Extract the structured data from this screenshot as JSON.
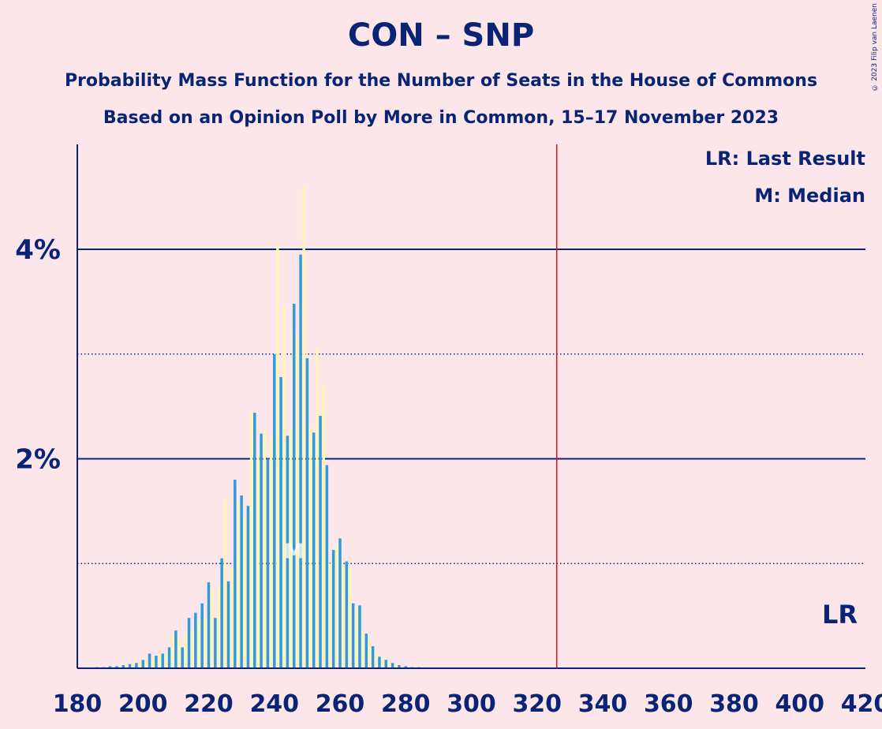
{
  "title": "CON – SNP",
  "subtitle_line1": "Probability Mass Function for the Number of Seats in the House of Commons",
  "subtitle_line2": "Based on an Opinion Poll by More in Common, 15–17 November 2023",
  "copyright": "© 2023 Filip van Laenen",
  "colors": {
    "background": "#fde6ea",
    "text": "#0a2475",
    "bar_blue": "#2f9bdb",
    "bar_yellow": "#fff4b8",
    "last_result_line": "#e0101a"
  },
  "chart_data": {
    "type": "bar",
    "title": "CON – SNP",
    "xlabel": "",
    "ylabel": "",
    "xlim": [
      180,
      420
    ],
    "ylim": [
      0,
      5
    ],
    "x_ticks": [
      180,
      200,
      220,
      240,
      260,
      280,
      300,
      320,
      340,
      360,
      380,
      400,
      420
    ],
    "y_tick_labels": [
      {
        "value": 2,
        "label": "2%"
      },
      {
        "value": 4,
        "label": "4%"
      }
    ],
    "grid_solid": [
      2,
      4
    ],
    "grid_dotted": [
      1,
      3
    ],
    "last_result": 326,
    "median": 246,
    "legend": [
      {
        "label": "LR: Last Result"
      },
      {
        "label": "M: Median"
      }
    ],
    "lr_label": "LR",
    "median_label": "M",
    "series": [
      {
        "x": [
          186,
          187,
          188,
          189,
          190,
          191,
          192,
          193,
          194,
          195,
          196,
          197,
          198,
          199,
          200,
          201,
          202,
          203,
          204,
          205,
          206,
          207,
          208,
          209,
          210,
          211,
          212,
          213,
          214,
          215,
          216,
          217,
          218,
          219,
          220,
          221,
          222,
          223,
          224,
          225,
          226,
          227,
          228,
          229,
          230,
          231,
          232,
          233,
          234,
          235,
          236,
          237,
          238,
          239,
          240,
          241,
          242,
          243,
          244,
          245,
          246,
          247,
          248,
          249,
          250,
          251,
          252,
          253,
          254,
          255,
          256,
          257,
          258,
          259,
          260,
          261,
          262,
          263,
          264,
          265,
          266,
          267,
          268,
          269,
          270,
          271,
          272,
          273,
          274,
          275,
          276,
          277,
          278,
          279,
          280,
          281,
          282,
          283,
          284
        ],
        "values": [
          0.01,
          0.01,
          0.01,
          0.01,
          0.02,
          0.02,
          0.02,
          0.03,
          0.03,
          0.03,
          0.04,
          0.05,
          0.05,
          0.07,
          0.08,
          0.1,
          0.14,
          0.1,
          0.12,
          0.14,
          0.14,
          0.13,
          0.2,
          0.32,
          0.36,
          0.28,
          0.2,
          0.33,
          0.48,
          0.36,
          0.53,
          0.46,
          0.62,
          0.48,
          0.82,
          0.78,
          0.48,
          0.77,
          1.05,
          1.62,
          0.83,
          0.96,
          1.8,
          1.58,
          1.65,
          1.45,
          1.55,
          2.44,
          2.44,
          2.03,
          2.24,
          2.27,
          2.0,
          2.2,
          3.0,
          4.06,
          2.78,
          3.46,
          2.22,
          2.29,
          3.48,
          3.17,
          3.95,
          4.6,
          2.96,
          2.3,
          2.25,
          3.07,
          2.41,
          2.7,
          1.94,
          1.0,
          1.13,
          1.17,
          1.24,
          0.99,
          1.02,
          0.95,
          0.62,
          0.58,
          0.6,
          0.35,
          0.33,
          0.26,
          0.21,
          0.16,
          0.11,
          0.1,
          0.08,
          0.06,
          0.05,
          0.04,
          0.03,
          0.02,
          0.02,
          0.01,
          0.01,
          0.01,
          0.01
        ]
      }
    ]
  }
}
